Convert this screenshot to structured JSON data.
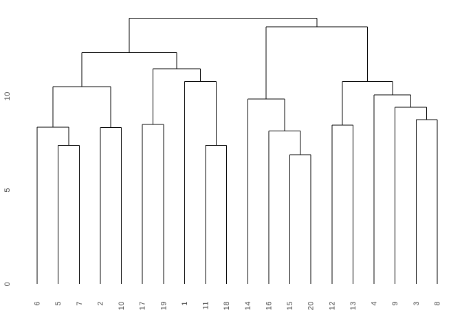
{
  "figure": {
    "background_color": "#ffffff",
    "title": ""
  },
  "chart_data": {
    "type": "dendrogram",
    "orientation": "leaves-bottom",
    "title": "",
    "xlabel": "",
    "ylabel": "",
    "line_color": "#000000",
    "text_color": "#4a4a4a",
    "grid": false,
    "legend": false,
    "leaf_label_rotation_deg": -90,
    "y_axis": {
      "side": "left",
      "ticks": [
        0,
        5,
        10
      ],
      "tick_labels": [
        "0",
        "5",
        "10"
      ],
      "range": [
        0,
        14.8
      ],
      "label_rotation_deg": -90
    },
    "leaf_order": [
      "6",
      "5",
      "7",
      "2",
      "10",
      "17",
      "19",
      "1",
      "11",
      "18",
      "14",
      "16",
      "15",
      "20",
      "12",
      "13",
      "4",
      "9",
      "3",
      "8"
    ],
    "tree": {
      "height": 14.15,
      "children": [
        {
          "height": 12.32,
          "children": [
            {
              "height": 10.5,
              "children": [
                {
                  "height": 8.34,
                  "children": [
                    {
                      "leaf": "6"
                    },
                    {
                      "height": 7.37,
                      "children": [
                        {
                          "leaf": "5"
                        },
                        {
                          "leaf": "7"
                        }
                      ]
                    }
                  ]
                },
                {
                  "height": 8.32,
                  "children": [
                    {
                      "leaf": "2"
                    },
                    {
                      "leaf": "10"
                    }
                  ]
                }
              ]
            },
            {
              "height": 11.46,
              "children": [
                {
                  "height": 8.49,
                  "children": [
                    {
                      "leaf": "17"
                    },
                    {
                      "leaf": "19"
                    }
                  ]
                },
                {
                  "height": 10.78,
                  "children": [
                    {
                      "leaf": "1"
                    },
                    {
                      "height": 7.37,
                      "children": [
                        {
                          "leaf": "11"
                        },
                        {
                          "leaf": "18"
                        }
                      ]
                    }
                  ]
                }
              ]
            }
          ]
        },
        {
          "height": 13.69,
          "children": [
            {
              "height": 9.84,
              "children": [
                {
                  "leaf": "14"
                },
                {
                  "height": 8.14,
                  "children": [
                    {
                      "leaf": "16"
                    },
                    {
                      "height": 6.87,
                      "children": [
                        {
                          "leaf": "15"
                        },
                        {
                          "leaf": "20"
                        }
                      ]
                    }
                  ]
                }
              ]
            },
            {
              "height": 10.78,
              "children": [
                {
                  "height": 8.46,
                  "children": [
                    {
                      "leaf": "12"
                    },
                    {
                      "leaf": "13"
                    }
                  ]
                },
                {
                  "height": 10.07,
                  "children": [
                    {
                      "leaf": "4"
                    },
                    {
                      "height": 9.41,
                      "children": [
                        {
                          "leaf": "9"
                        },
                        {
                          "height": 8.74,
                          "children": [
                            {
                              "leaf": "3"
                            },
                            {
                              "leaf": "8"
                            }
                          ]
                        }
                      ]
                    }
                  ]
                }
              ]
            }
          ]
        }
      ]
    }
  }
}
